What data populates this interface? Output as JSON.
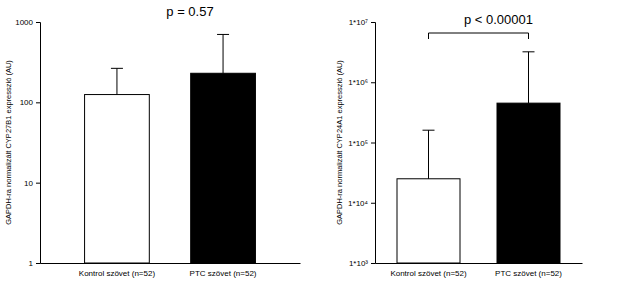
{
  "chart_data": [
    {
      "type": "bar",
      "title": "p = 0.57",
      "y_label": "GAPDH-ra normalizált CYP27B1 expresszió (AU)",
      "categories": [
        "Kontrol szövet (n=52)",
        "PTC szövet (n=52)"
      ],
      "values": [
        125,
        230
      ],
      "errors": [
        140,
        470
      ],
      "colors": [
        "#ffffff",
        "#000000"
      ],
      "log": "y",
      "ylim": [
        1,
        1000
      ],
      "yticks": [
        1,
        10,
        100,
        1000
      ]
    },
    {
      "type": "bar",
      "annotation": "p < 0.00001",
      "y_label": "GAPDH-ra normalizált CYP24A1 expresszió (AU)",
      "categories": [
        "Kontrol szövet (n=52)",
        "PTC szövet (n=52)"
      ],
      "values": [
        25000,
        450000
      ],
      "errors": [
        135000,
        2750000
      ],
      "colors": [
        "#ffffff",
        "#000000"
      ],
      "log": "y",
      "ylim": [
        1000,
        10000000
      ],
      "yticks": [
        {
          "value": 1000,
          "label": "1*10³"
        },
        {
          "value": 10000,
          "label": "1*10⁴"
        },
        {
          "value": 100000,
          "label": "1*10⁵"
        },
        {
          "value": 1000000,
          "label": "1*10⁶"
        },
        {
          "value": 10000000,
          "label": "1*10⁷"
        }
      ]
    }
  ]
}
